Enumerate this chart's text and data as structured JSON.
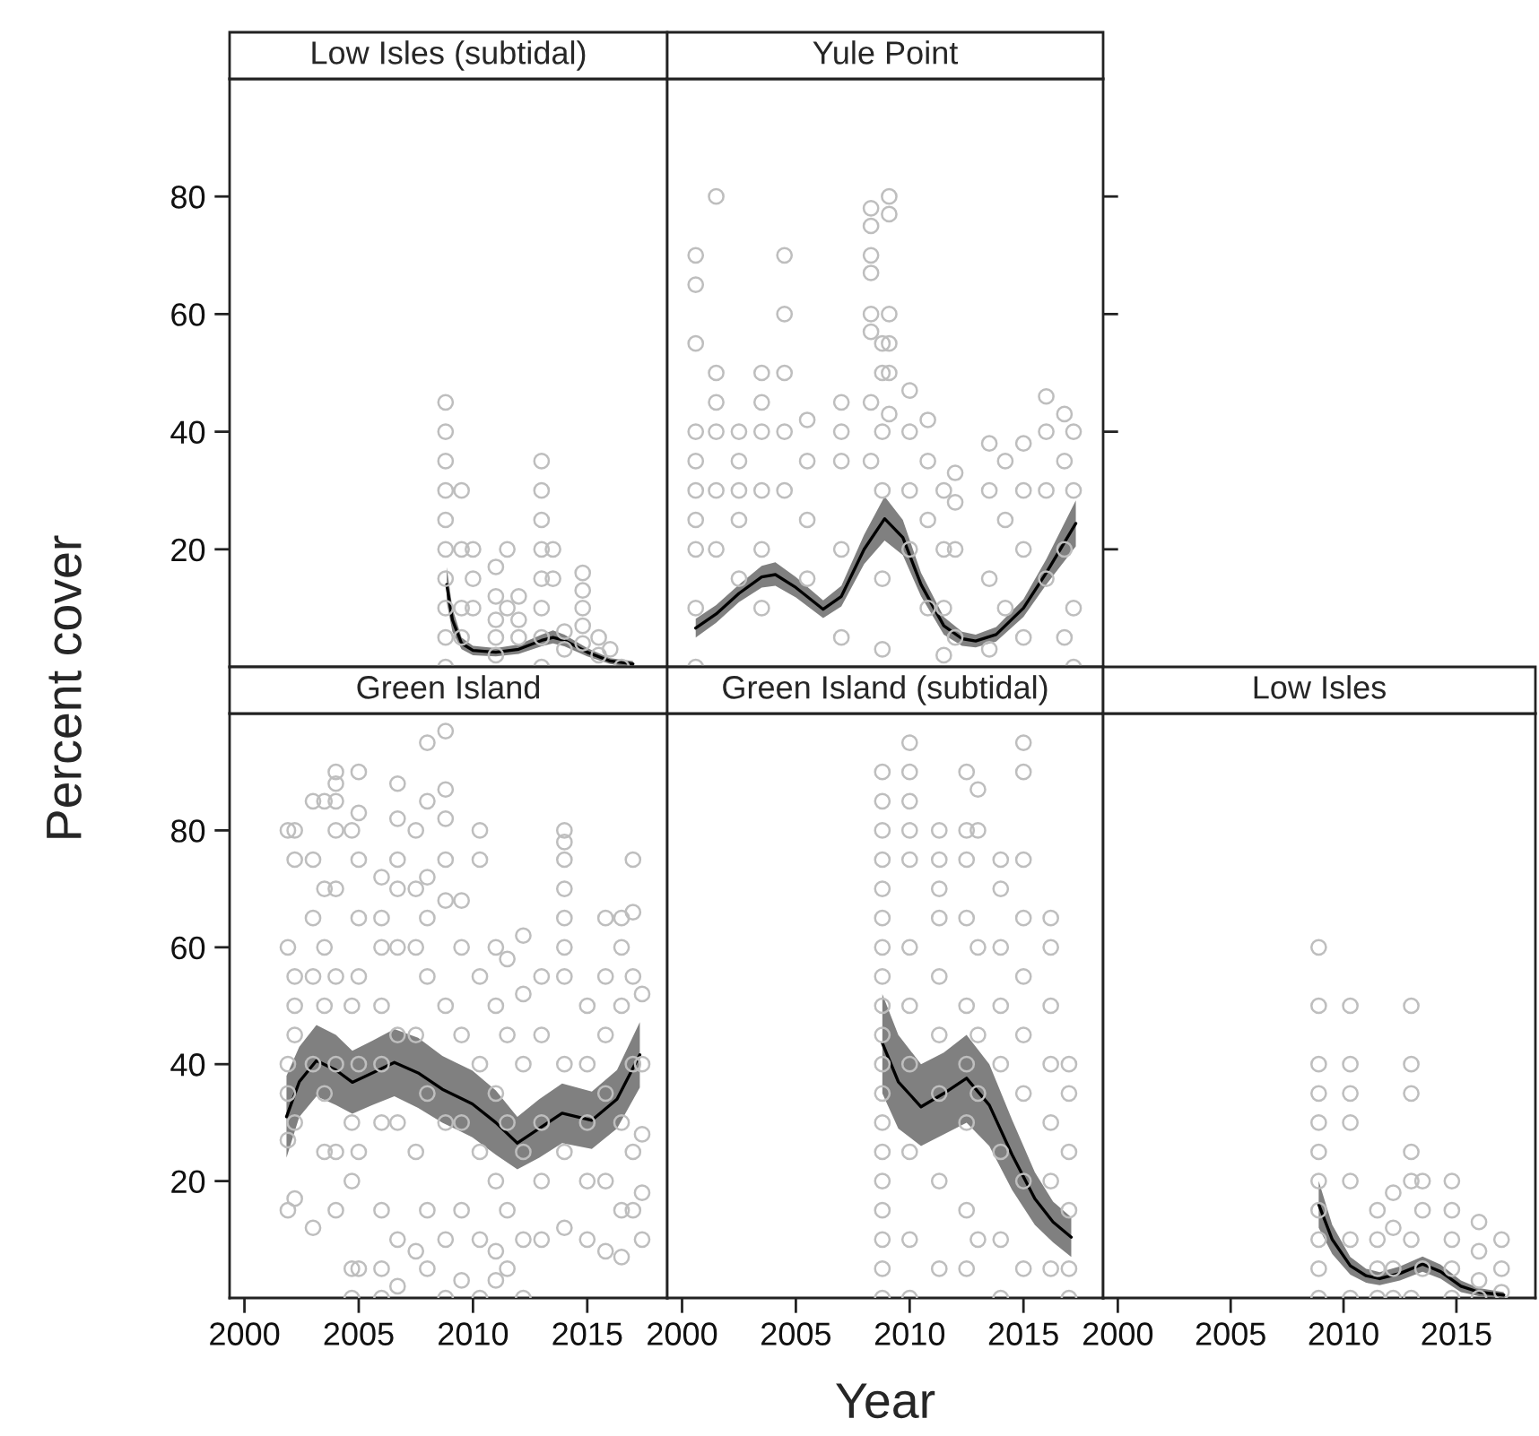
{
  "chart_data": [
    {
      "type": "scatter",
      "title": "Low Isles (subtidal)",
      "ylabel": "Percent cover",
      "xlim": [
        1999.35,
        2018.5
      ],
      "ylim": [
        0,
        100
      ],
      "xticks": [
        2000,
        2005,
        2010,
        2015
      ],
      "yticks": [
        20,
        40,
        60,
        80
      ],
      "tick_labels": "y",
      "marker": "circle",
      "series": [
        {
          "type": "scatter",
          "color": "#bebebe",
          "x": [
            2008.8,
            2008.8,
            2008.8,
            2008.8,
            2008.8,
            2008.8,
            2008.8,
            2008.8,
            2008.8,
            2008.8,
            2009.5,
            2009.5,
            2009.5,
            2009.5,
            2010,
            2010,
            2010,
            2011,
            2011,
            2011,
            2011,
            2011,
            2011.5,
            2011.5,
            2012,
            2012,
            2012,
            2013,
            2013,
            2013,
            2013,
            2013,
            2013,
            2013,
            2013,
            2013.5,
            2013.5,
            2014,
            2014,
            2014.8,
            2014.8,
            2014.8,
            2014.8,
            2014.8,
            2015.5,
            2015.5,
            2016,
            2016.5
          ],
          "values": [
            45,
            40,
            35,
            30,
            25,
            20,
            15,
            10,
            5,
            0,
            30,
            20,
            10,
            5,
            20,
            15,
            10,
            17,
            12,
            8,
            5,
            2,
            20,
            10,
            12,
            8,
            5,
            35,
            30,
            25,
            20,
            15,
            10,
            5,
            0,
            20,
            15,
            6,
            3,
            16,
            13,
            10,
            7,
            4,
            5,
            2,
            3,
            0
          ]
        },
        {
          "type": "line",
          "color": "#000000",
          "marker": "none",
          "x": [
            2008.85,
            2009.1,
            2009.5,
            2010,
            2011,
            2012,
            2013,
            2013.5,
            2014,
            2015,
            2016,
            2017
          ],
          "values": [
            14,
            8,
            4,
            2.8,
            2.5,
            3,
            4.5,
            5,
            4.5,
            2.5,
            1,
            0.5
          ],
          "lower": [
            11,
            6,
            3,
            2,
            1.8,
            2.2,
            3.5,
            4,
            3.5,
            1.8,
            0.5,
            0
          ],
          "upper": [
            17,
            10,
            5,
            3.6,
            3.2,
            3.8,
            5.5,
            6.2,
            5.5,
            3.2,
            1.5,
            1
          ]
        }
      ]
    },
    {
      "type": "scatter",
      "title": "Yule Point",
      "xlim": [
        1999.35,
        2018.5
      ],
      "ylim": [
        0,
        100
      ],
      "xticks": [
        2000,
        2005,
        2010,
        2015
      ],
      "yticks": [
        20,
        40,
        60,
        80
      ],
      "tick_labels": false,
      "marker": "circle",
      "series": [
        {
          "type": "scatter",
          "color": "#bebebe",
          "x": [
            2000.6,
            2000.6,
            2000.6,
            2000.6,
            2000.6,
            2000.6,
            2000.6,
            2000.6,
            2000.6,
            2000.6,
            2001.5,
            2001.5,
            2001.5,
            2001.5,
            2001.5,
            2001.5,
            2002.5,
            2002.5,
            2002.5,
            2002.5,
            2002.5,
            2003.5,
            2003.5,
            2003.5,
            2003.5,
            2003.5,
            2003.5,
            2004.5,
            2004.5,
            2004.5,
            2004.5,
            2004.5,
            2005.5,
            2005.5,
            2005.5,
            2005.5,
            2007,
            2007,
            2007,
            2007,
            2007,
            2008.3,
            2008.3,
            2008.3,
            2008.3,
            2008.3,
            2008.3,
            2008.3,
            2008.3,
            2008.8,
            2008.8,
            2008.8,
            2008.8,
            2008.8,
            2008.8,
            2009.1,
            2009.1,
            2009.1,
            2009.1,
            2009.1,
            2009.1,
            2010,
            2010,
            2010,
            2010,
            2010.8,
            2010.8,
            2010.8,
            2010.8,
            2011.5,
            2011.5,
            2011.5,
            2011.5,
            2012,
            2012,
            2012,
            2012,
            2013.5,
            2013.5,
            2013.5,
            2013.5,
            2014.2,
            2014.2,
            2014.2,
            2015,
            2015,
            2015,
            2015,
            2016,
            2016,
            2016,
            2016,
            2016.8,
            2016.8,
            2016.8,
            2016.8,
            2017.2,
            2017.2,
            2017.2,
            2017.2
          ],
          "values": [
            70,
            65,
            55,
            40,
            35,
            30,
            25,
            20,
            10,
            0,
            80,
            50,
            45,
            40,
            30,
            20,
            40,
            35,
            30,
            25,
            15,
            50,
            45,
            40,
            30,
            20,
            10,
            70,
            60,
            50,
            40,
            30,
            42,
            35,
            25,
            15,
            45,
            40,
            35,
            20,
            5,
            78,
            75,
            70,
            67,
            60,
            57,
            45,
            35,
            55,
            50,
            40,
            30,
            15,
            3,
            80,
            77,
            60,
            55,
            50,
            43,
            47,
            40,
            30,
            20,
            42,
            35,
            25,
            10,
            30,
            20,
            10,
            2,
            28,
            33,
            20,
            5,
            38,
            30,
            15,
            3,
            35,
            25,
            10,
            38,
            30,
            20,
            5,
            46,
            40,
            30,
            15,
            43,
            35,
            20,
            5,
            40,
            30,
            10,
            0
          ]
        },
        {
          "type": "line",
          "color": "#000000",
          "marker": "none",
          "x": [
            2000.6,
            2001.5,
            2002.5,
            2003.5,
            2004.1,
            2005,
            2006.2,
            2007,
            2008,
            2008.9,
            2009.7,
            2010.5,
            2011.5,
            2012.3,
            2012.9,
            2013.8,
            2015,
            2016,
            2017.3
          ],
          "values": [
            6.6,
            9,
            12.5,
            15.3,
            15.7,
            13.5,
            9.8,
            12,
            20,
            25.2,
            22,
            14,
            7,
            4.8,
            4.4,
            5.5,
            10,
            16,
            24.4
          ],
          "lower": [
            5,
            7.5,
            11,
            13.5,
            13.8,
            11.8,
            8.3,
            10.3,
            17.5,
            21.5,
            19,
            12,
            5.5,
            3.6,
            3.3,
            4.3,
            8.5,
            14,
            20.5
          ],
          "upper": [
            8.2,
            10.5,
            14,
            17.2,
            17.8,
            15.3,
            11.3,
            13.8,
            22.5,
            29,
            25,
            16,
            8.5,
            6,
            5.5,
            6.8,
            11.5,
            18.3,
            28.3
          ]
        }
      ]
    },
    {
      "type": "scatter",
      "title": "Green Island",
      "xlim": [
        1999.35,
        2018.5
      ],
      "ylim": [
        0,
        100
      ],
      "xticks": [
        2000,
        2005,
        2010,
        2015
      ],
      "yticks": [
        20,
        40,
        60,
        80
      ],
      "marker": "circle",
      "series": [
        {
          "type": "scatter",
          "color": "#bebebe",
          "x": [
            2001.9,
            2001.9,
            2001.9,
            2001.9,
            2001.9,
            2001.9,
            2002.2,
            2002.2,
            2002.2,
            2002.2,
            2002.2,
            2002.2,
            2002.2,
            2003,
            2003,
            2003,
            2003,
            2003,
            2003,
            2003.5,
            2003.5,
            2003.5,
            2003.5,
            2003.5,
            2003.5,
            2004,
            2004,
            2004,
            2004,
            2004,
            2004,
            2004,
            2004,
            2004,
            2004.7,
            2004.7,
            2004.7,
            2004.7,
            2004.7,
            2004.7,
            2005,
            2005,
            2005,
            2005,
            2005,
            2005,
            2005,
            2005,
            2006,
            2006,
            2006,
            2006,
            2006,
            2006,
            2006,
            2006,
            2006,
            2006.7,
            2006.7,
            2006.7,
            2006.7,
            2006.7,
            2006.7,
            2006.7,
            2006.7,
            2006.7,
            2007.5,
            2007.5,
            2007.5,
            2007.5,
            2007.5,
            2007.5,
            2008,
            2008,
            2008,
            2008,
            2008,
            2008,
            2008,
            2008,
            2008.8,
            2008.8,
            2008.8,
            2008.8,
            2008.8,
            2008.8,
            2008.8,
            2008.8,
            2008.8,
            2009.5,
            2009.5,
            2009.5,
            2009.5,
            2009.5,
            2009.5,
            2010.3,
            2010.3,
            2010.3,
            2010.3,
            2010.3,
            2010.3,
            2010.3,
            2011,
            2011,
            2011,
            2011,
            2011,
            2011,
            2011.5,
            2011.5,
            2011.5,
            2011.5,
            2011.5,
            2012.2,
            2012.2,
            2012.2,
            2012.2,
            2012.2,
            2012.2,
            2013,
            2013,
            2013,
            2013,
            2013,
            2014,
            2014,
            2014,
            2014,
            2014,
            2014,
            2014,
            2014,
            2014,
            2014,
            2015,
            2015,
            2015,
            2015,
            2015,
            2015.8,
            2015.8,
            2015.8,
            2015.8,
            2015.8,
            2015.8,
            2016.5,
            2016.5,
            2016.5,
            2016.5,
            2016.5,
            2016.5,
            2017,
            2017,
            2017,
            2017,
            2017,
            2017,
            2017.4,
            2017.4,
            2017.4,
            2017.4,
            2017.4
          ],
          "values": [
            80,
            60,
            40,
            35,
            27,
            15,
            80,
            75,
            55,
            50,
            45,
            30,
            17,
            85,
            75,
            65,
            55,
            40,
            12,
            85,
            70,
            60,
            50,
            35,
            25,
            90,
            88,
            85,
            80,
            70,
            55,
            40,
            25,
            15,
            80,
            50,
            30,
            20,
            5,
            0,
            90,
            83,
            75,
            65,
            55,
            40,
            25,
            5,
            72,
            65,
            60,
            50,
            40,
            30,
            15,
            5,
            0,
            88,
            82,
            75,
            70,
            60,
            45,
            30,
            10,
            2,
            80,
            70,
            60,
            45,
            25,
            8,
            95,
            85,
            72,
            65,
            55,
            35,
            15,
            5,
            97,
            87,
            82,
            75,
            68,
            50,
            30,
            10,
            0,
            68,
            60,
            45,
            30,
            15,
            3,
            80,
            75,
            55,
            40,
            25,
            10,
            0,
            60,
            50,
            35,
            20,
            8,
            3,
            58,
            45,
            30,
            15,
            5,
            62,
            52,
            40,
            25,
            10,
            0,
            55,
            45,
            30,
            20,
            10,
            80,
            78,
            75,
            70,
            65,
            60,
            55,
            40,
            25,
            12,
            50,
            40,
            30,
            20,
            10,
            65,
            55,
            45,
            35,
            20,
            8,
            65,
            60,
            50,
            30,
            15,
            7,
            75,
            66,
            55,
            40,
            25,
            15,
            52,
            40,
            28,
            18,
            10
          ]
        },
        {
          "type": "line",
          "color": "#000000",
          "marker": "none",
          "x": [
            2001.84,
            2002.4,
            2003.15,
            2004,
            2004.72,
            2005.6,
            2006.56,
            2007.6,
            2008.66,
            2009.97,
            2011,
            2011.94,
            2012.9,
            2013.9,
            2015.2,
            2016.3,
            2017.3
          ],
          "values": [
            31,
            37,
            40.6,
            39,
            36.9,
            38.5,
            40.3,
            38.5,
            35.7,
            33.2,
            30,
            26.5,
            29,
            31.6,
            30.4,
            34,
            41.6
          ],
          "lower": [
            24,
            31,
            34.5,
            33,
            31.5,
            33,
            34.5,
            32.5,
            30,
            27.5,
            24.5,
            22,
            24,
            26.5,
            25.5,
            29,
            36
          ],
          "upper": [
            38,
            43,
            46.7,
            45,
            42.3,
            44,
            46,
            44.5,
            41.4,
            38.9,
            35.5,
            31,
            34,
            36.7,
            35.3,
            39,
            47.2
          ]
        }
      ]
    },
    {
      "type": "scatter",
      "title": "Green Island (subtidal)",
      "xlabel": "Year",
      "xlim": [
        1999.35,
        2018.5
      ],
      "ylim": [
        0,
        100
      ],
      "xticks": [
        2000,
        2005,
        2010,
        2015
      ],
      "yticks": [
        20,
        40,
        60,
        80
      ],
      "tick_labels": "x",
      "marker": "circle",
      "series": [
        {
          "type": "scatter",
          "color": "#bebebe",
          "x": [
            2008.8,
            2008.8,
            2008.8,
            2008.8,
            2008.8,
            2008.8,
            2008.8,
            2008.8,
            2008.8,
            2008.8,
            2008.8,
            2008.8,
            2008.8,
            2008.8,
            2008.8,
            2008.8,
            2008.8,
            2008.8,
            2008.8,
            2010,
            2010,
            2010,
            2010,
            2010,
            2010,
            2010,
            2010,
            2010,
            2010,
            2010,
            2011.3,
            2011.3,
            2011.3,
            2011.3,
            2011.3,
            2011.3,
            2011.3,
            2011.3,
            2011.3,
            2012.5,
            2012.5,
            2012.5,
            2012.5,
            2012.5,
            2012.5,
            2012.5,
            2012.5,
            2012.5,
            2013,
            2013,
            2013,
            2013,
            2013,
            2013,
            2014,
            2014,
            2014,
            2014,
            2014,
            2014,
            2014,
            2014,
            2015,
            2015,
            2015,
            2015,
            2015,
            2015,
            2015,
            2015,
            2015,
            2016.2,
            2016.2,
            2016.2,
            2016.2,
            2016.2,
            2016.2,
            2016.2,
            2017,
            2017,
            2017,
            2017,
            2017,
            2017
          ],
          "values": [
            90,
            85,
            80,
            75,
            70,
            65,
            60,
            55,
            50,
            45,
            40,
            35,
            30,
            25,
            20,
            15,
            10,
            5,
            0,
            95,
            90,
            85,
            80,
            75,
            60,
            50,
            40,
            25,
            10,
            0,
            80,
            75,
            70,
            65,
            55,
            45,
            35,
            20,
            5,
            90,
            80,
            75,
            65,
            50,
            40,
            30,
            15,
            5,
            87,
            80,
            60,
            45,
            35,
            10,
            75,
            70,
            60,
            50,
            40,
            25,
            10,
            0,
            95,
            90,
            75,
            65,
            55,
            45,
            35,
            20,
            5,
            65,
            60,
            50,
            40,
            30,
            20,
            5,
            40,
            35,
            25,
            15,
            5,
            0
          ]
        },
        {
          "type": "line",
          "color": "#000000",
          "marker": "none",
          "x": [
            2008.8,
            2009.5,
            2010.5,
            2011.5,
            2012.5,
            2013.5,
            2014.5,
            2015.5,
            2016.3,
            2017.1
          ],
          "values": [
            43.6,
            37,
            32.7,
            35,
            37.6,
            33,
            24.5,
            17,
            13,
            10.4
          ],
          "lower": [
            35,
            29,
            26,
            28,
            30,
            26,
            18.5,
            12.5,
            9.5,
            7
          ],
          "upper": [
            52,
            45,
            40,
            42,
            45,
            40,
            30.5,
            21.5,
            16.5,
            13.8
          ]
        }
      ]
    },
    {
      "type": "scatter",
      "title": "Low Isles",
      "xlim": [
        1999.35,
        2018.5
      ],
      "ylim": [
        0,
        100
      ],
      "xticks": [
        2000,
        2005,
        2010,
        2015
      ],
      "yticks": [
        20,
        40,
        60,
        80
      ],
      "tick_labels": "x",
      "marker": "circle",
      "series": [
        {
          "type": "scatter",
          "color": "#bebebe",
          "x": [
            2008.9,
            2008.9,
            2008.9,
            2008.9,
            2008.9,
            2008.9,
            2008.9,
            2008.9,
            2008.9,
            2008.9,
            2008.9,
            2010.3,
            2010.3,
            2010.3,
            2010.3,
            2010.3,
            2010.3,
            2010.3,
            2011.5,
            2011.5,
            2011.5,
            2011.5,
            2012.2,
            2012.2,
            2012.2,
            2012.2,
            2013,
            2013,
            2013,
            2013,
            2013,
            2013,
            2013,
            2013.5,
            2013.5,
            2013.5,
            2014.8,
            2014.8,
            2014.8,
            2014.8,
            2014.8,
            2016,
            2016,
            2016,
            2016,
            2017,
            2017,
            2017
          ],
          "values": [
            60,
            50,
            40,
            35,
            30,
            25,
            20,
            15,
            10,
            5,
            0,
            50,
            40,
            35,
            30,
            20,
            10,
            0,
            15,
            10,
            5,
            0,
            18,
            12,
            5,
            0,
            50,
            40,
            35,
            25,
            20,
            10,
            0,
            20,
            15,
            5,
            20,
            15,
            10,
            5,
            0,
            13,
            8,
            3,
            0,
            10,
            5,
            1
          ]
        },
        {
          "type": "line",
          "color": "#000000",
          "marker": "none",
          "x": [
            2008.9,
            2009.5,
            2010.3,
            2011,
            2011.6,
            2012.5,
            2013.5,
            2014.3,
            2015.2,
            2016,
            2017.1
          ],
          "values": [
            16,
            10,
            5.5,
            3.8,
            3.3,
            4.2,
            5.8,
            4.5,
            2,
            1,
            0.5
          ],
          "lower": [
            12,
            7.5,
            4,
            2.6,
            2.2,
            3,
            4.5,
            3.3,
            1,
            0.3,
            0
          ],
          "upper": [
            20,
            12.5,
            7,
            5,
            4.4,
            5.4,
            7.1,
            5.7,
            3,
            1.7,
            1
          ]
        }
      ]
    }
  ]
}
